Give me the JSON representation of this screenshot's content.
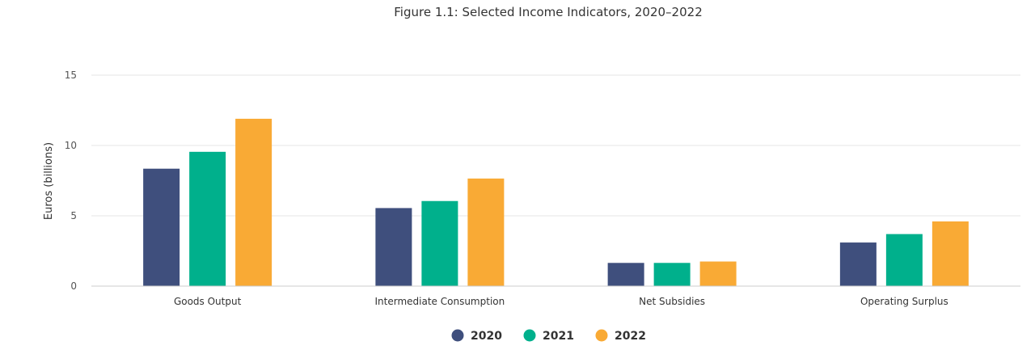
{
  "chart_data": {
    "type": "bar",
    "title": "Figure 1.1: Selected Income Indicators, 2020–2022",
    "xlabel": "",
    "ylabel": "Euros (billions)",
    "ylim": [
      0,
      15
    ],
    "yticks": [
      0,
      5,
      10,
      15
    ],
    "grid": true,
    "legend_position": "bottom-center",
    "categories": [
      "Goods Output",
      "Intermediate Consumption",
      "Net Subsidies",
      "Operating Surplus"
    ],
    "series": [
      {
        "name": "2020",
        "color": "#3f4f7d",
        "values": [
          8.35,
          5.55,
          1.65,
          3.1
        ]
      },
      {
        "name": "2021",
        "color": "#00b08c",
        "values": [
          9.55,
          6.05,
          1.65,
          3.7
        ]
      },
      {
        "name": "2022",
        "color": "#f9aa35",
        "values": [
          11.9,
          7.65,
          1.75,
          4.6
        ]
      }
    ]
  }
}
